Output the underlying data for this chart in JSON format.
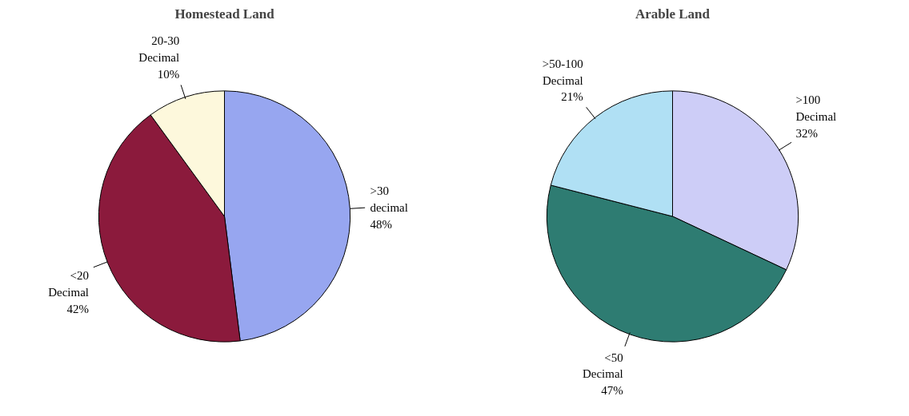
{
  "chart_data": [
    {
      "type": "pie",
      "title": "Homestead Land",
      "categories": [
        ">30\ndecimal",
        "<20\nDecimal",
        "20-30\nDecimal"
      ],
      "values": [
        48,
        42,
        10
      ],
      "value_labels": [
        "48%",
        "42%",
        "10%"
      ],
      "colors": [
        "#97a6f0",
        "#8b1a3c",
        "#fdf8dc"
      ],
      "legend": false
    },
    {
      "type": "pie",
      "title": "Arable Land",
      "categories": [
        ">100\nDecimal",
        "<50\nDecimal",
        ">50-100\nDecimal"
      ],
      "values": [
        32,
        47,
        21
      ],
      "value_labels": [
        "32%",
        "47%",
        "21%"
      ],
      "colors": [
        "#cdcdf7",
        "#2e7c72",
        "#b0e0f4"
      ],
      "legend": false
    }
  ]
}
